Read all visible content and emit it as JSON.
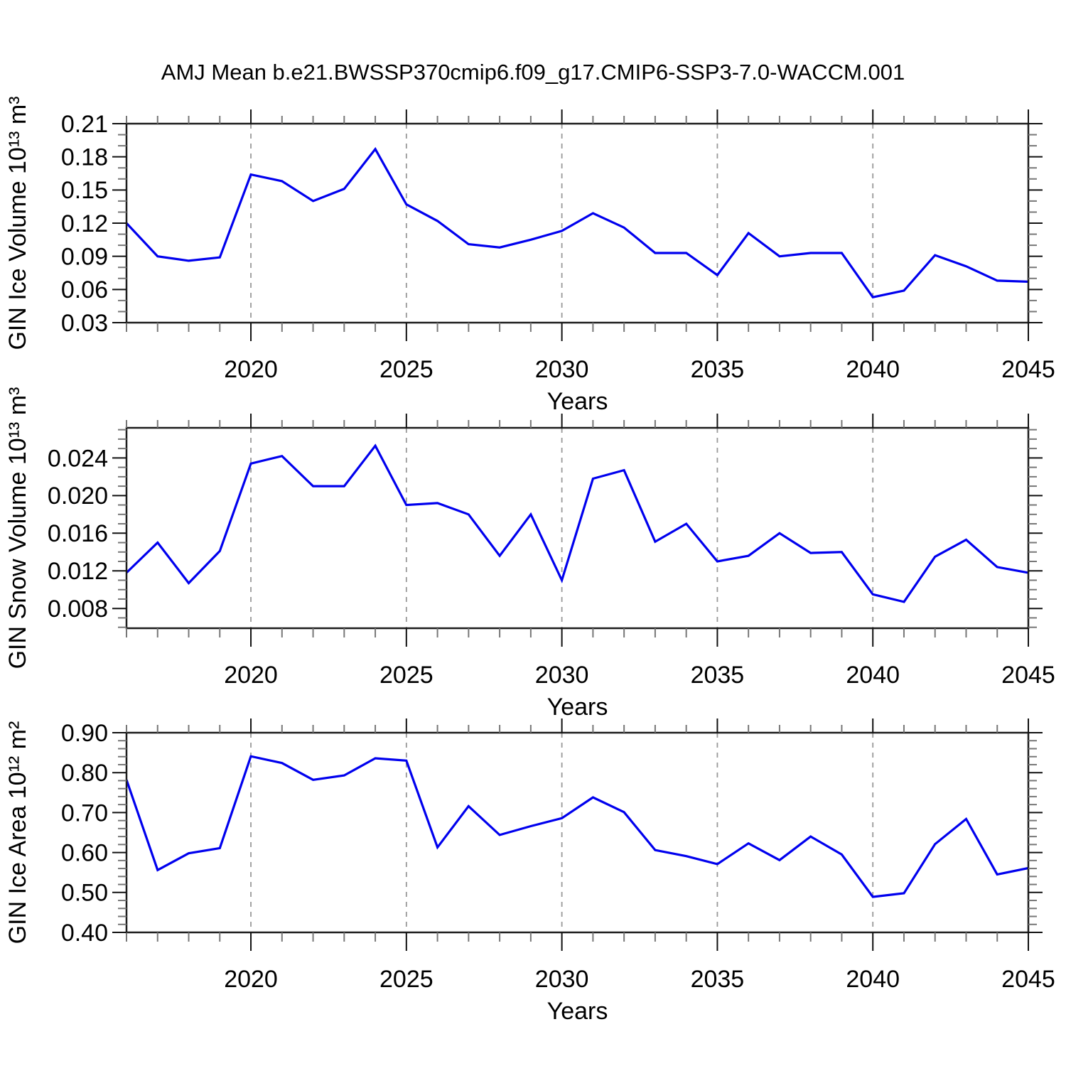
{
  "title": "AMJ Mean b.e21.BWSSP370cmip6.f09_g17.CMIP6-SSP3-7.0-WACCM.001",
  "colors": {
    "line": "#0000EE",
    "grid": "#999999",
    "axis": "#1C1C1C",
    "major_tick": "#111111",
    "minor_tick": "#777777",
    "text": "#000000"
  },
  "chart_data": [
    {
      "type": "line",
      "name": "gin-ice-volume",
      "ylabel": "GIN Ice Volume 10¹³ m³",
      "xlabel": "Years",
      "x": [
        2016,
        2017,
        2018,
        2019,
        2020,
        2021,
        2022,
        2023,
        2024,
        2025,
        2026,
        2027,
        2028,
        2029,
        2030,
        2031,
        2032,
        2033,
        2034,
        2035,
        2036,
        2037,
        2038,
        2039,
        2040,
        2041,
        2042,
        2043,
        2044,
        2045
      ],
      "values": [
        0.12,
        0.09,
        0.086,
        0.089,
        0.164,
        0.158,
        0.14,
        0.151,
        0.187,
        0.137,
        0.122,
        0.101,
        0.098,
        0.105,
        0.113,
        0.129,
        0.116,
        0.093,
        0.093,
        0.073,
        0.111,
        0.09,
        0.093,
        0.093,
        0.053,
        0.059,
        0.091,
        0.081,
        0.068,
        0.067
      ],
      "xlim": [
        2016,
        2045
      ],
      "ylim": [
        0.03,
        0.21
      ],
      "yticks": [
        0.03,
        0.06,
        0.09,
        0.12,
        0.15,
        0.18,
        0.21
      ],
      "ytick_labels": [
        "0.03",
        "0.06",
        "0.09",
        "0.12",
        "0.15",
        "0.18",
        "0.21"
      ],
      "yminor_step": 0.01,
      "xticks": [
        2020,
        2025,
        2030,
        2035,
        2040,
        2045
      ],
      "xtick_labels": [
        "2020",
        "2025",
        "2030",
        "2035",
        "2040",
        "2045"
      ],
      "xminor_step": 1,
      "grid_x": [
        2020,
        2025,
        2030,
        2035,
        2040
      ],
      "grid": "vertical-dashed",
      "legend": "none"
    },
    {
      "type": "line",
      "name": "gin-snow-volume",
      "ylabel": "GIN Snow Volume 10¹³ m³",
      "xlabel": "Years",
      "x": [
        2016,
        2017,
        2018,
        2019,
        2020,
        2021,
        2022,
        2023,
        2024,
        2025,
        2026,
        2027,
        2028,
        2029,
        2030,
        2031,
        2032,
        2033,
        2034,
        2035,
        2036,
        2037,
        2038,
        2039,
        2040,
        2041,
        2042,
        2043,
        2044,
        2045
      ],
      "values": [
        0.0118,
        0.015,
        0.0107,
        0.0141,
        0.0234,
        0.0242,
        0.021,
        0.021,
        0.0253,
        0.019,
        0.0192,
        0.018,
        0.0136,
        0.018,
        0.011,
        0.0218,
        0.0227,
        0.0151,
        0.017,
        0.013,
        0.0136,
        0.016,
        0.0139,
        0.014,
        0.0095,
        0.0087,
        0.0135,
        0.0153,
        0.0124,
        0.0118
      ],
      "xlim": [
        2016,
        2045
      ],
      "ylim": [
        0.0059,
        0.0272
      ],
      "yticks": [
        0.008,
        0.012,
        0.016,
        0.02,
        0.024
      ],
      "ytick_labels": [
        "0.008",
        "0.012",
        "0.016",
        "0.020",
        "0.024"
      ],
      "yminor_step": 0.001,
      "xticks": [
        2020,
        2025,
        2030,
        2035,
        2040,
        2045
      ],
      "xtick_labels": [
        "2020",
        "2025",
        "2030",
        "2035",
        "2040",
        "2045"
      ],
      "xminor_step": 1,
      "grid_x": [
        2020,
        2025,
        2030,
        2035,
        2040
      ],
      "grid": "vertical-dashed",
      "legend": "none"
    },
    {
      "type": "line",
      "name": "gin-ice-area",
      "ylabel": "GIN Ice Area 10¹² m²",
      "xlabel": "Years",
      "x": [
        2016,
        2017,
        2018,
        2019,
        2020,
        2021,
        2022,
        2023,
        2024,
        2025,
        2026,
        2027,
        2028,
        2029,
        2030,
        2031,
        2032,
        2033,
        2034,
        2035,
        2036,
        2037,
        2038,
        2039,
        2040,
        2041,
        2042,
        2043,
        2044,
        2045
      ],
      "values": [
        0.782,
        0.556,
        0.598,
        0.611,
        0.841,
        0.824,
        0.782,
        0.793,
        0.836,
        0.83,
        0.613,
        0.716,
        0.644,
        0.666,
        0.686,
        0.738,
        0.701,
        0.606,
        0.591,
        0.571,
        0.623,
        0.581,
        0.64,
        0.595,
        0.489,
        0.498,
        0.621,
        0.684,
        0.545,
        0.561
      ],
      "xlim": [
        2016,
        2045
      ],
      "ylim": [
        0.4,
        0.9
      ],
      "yticks": [
        0.4,
        0.5,
        0.6,
        0.7,
        0.8,
        0.9
      ],
      "ytick_labels": [
        "0.40",
        "0.50",
        "0.60",
        "0.70",
        "0.80",
        "0.90"
      ],
      "yminor_step": 0.02,
      "xticks": [
        2020,
        2025,
        2030,
        2035,
        2040,
        2045
      ],
      "xtick_labels": [
        "2020",
        "2025",
        "2030",
        "2035",
        "2040",
        "2045"
      ],
      "xminor_step": 1,
      "grid_x": [
        2020,
        2025,
        2030,
        2035,
        2040
      ],
      "grid": "vertical-dashed",
      "legend": "none"
    }
  ]
}
